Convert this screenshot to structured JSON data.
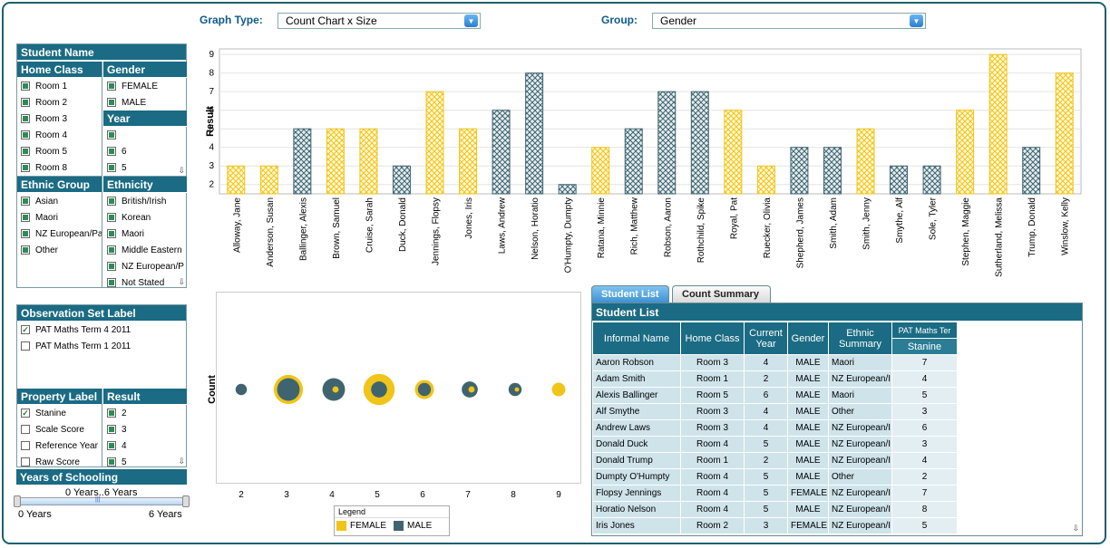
{
  "controls": {
    "graph_type_label": "Graph Type:",
    "graph_type_value": "Count Chart x Size",
    "group_label": "Group:",
    "group_value": "Gender"
  },
  "filters": {
    "student_name_header": "Student Name",
    "home_class": {
      "header": "Home Class",
      "items": [
        "Room 1",
        "Room 2",
        "Room 3",
        "Room 4",
        "Room 5",
        "Room 8"
      ]
    },
    "gender": {
      "header": "Gender",
      "items": [
        "FEMALE",
        "MALE"
      ]
    },
    "year": {
      "header": "Year",
      "items": [
        "",
        "6",
        "5"
      ]
    },
    "ethnic_group": {
      "header": "Ethnic Group",
      "items": [
        "Asian",
        "Maori",
        "NZ European/Pa",
        "Other"
      ]
    },
    "ethnicity": {
      "header": "Ethnicity",
      "items": [
        "British/Irish",
        "Korean",
        "Maori",
        "Middle Eastern",
        "NZ European/P",
        "Not Stated"
      ]
    },
    "observation_set": {
      "header": "Observation Set Label",
      "items": [
        {
          "label": "PAT Maths Term 4 2011",
          "checked": true
        },
        {
          "label": "PAT Maths Term 1 2011",
          "checked": false
        }
      ]
    },
    "property_label": {
      "header": "Property Label",
      "items": [
        {
          "label": "Stanine",
          "checked": true
        },
        {
          "label": "Scale Score",
          "checked": false
        },
        {
          "label": "Reference Year",
          "checked": false
        },
        {
          "label": "Raw Score",
          "checked": false
        }
      ]
    },
    "result": {
      "header": "Result",
      "items": [
        "2",
        "3",
        "4",
        "5"
      ]
    },
    "years_of_schooling": {
      "header": "Years of Schooling",
      "range_text": "0 Years..6 Years",
      "min_label": "0 Years",
      "max_label": "6 Years"
    }
  },
  "colors": {
    "female": "#f0c419",
    "male": "#3f6470",
    "header": "#1a6b83"
  },
  "bar_chart": {
    "chart_data": {
      "type": "bar",
      "ylabel": "Result",
      "ylim": [
        1.5,
        9.3
      ],
      "yticks": [
        "2",
        "3",
        "4",
        "5",
        "6",
        "7",
        "8",
        "9"
      ],
      "categories": [
        "Alloway, Jane",
        "Anderson, Susan",
        "Ballinger, Alexis",
        "Brown, Samuel",
        "Cruise, Sarah",
        "Duck, Donald",
        "Jennings, Flopsy",
        "Jones, Iris",
        "Laws, Andrew",
        "Nelson, Horatio",
        "O'Humpty, Dumpty",
        "Ratana, Minnie",
        "Rich, Matthew",
        "Robson, Aaron",
        "Rothchild, Spike",
        "Royal, Pat",
        "Ruecker, Olivia",
        "Shepherd, James",
        "Smith, Adam",
        "Smith, Jenny",
        "Smythe, Alf",
        "Sole, Tyler",
        "Stephen, Maggie",
        "Sutherland, Melissa",
        "Trump, Donald",
        "Winslow, Kelly"
      ],
      "values": [
        3,
        3,
        5,
        5,
        5,
        3,
        7,
        5,
        6,
        8,
        2,
        4,
        5,
        7,
        7,
        6,
        3,
        4,
        4,
        5,
        3,
        3,
        6,
        9,
        4,
        8
      ],
      "groups": [
        "F",
        "F",
        "M",
        "F",
        "F",
        "M",
        "F",
        "F",
        "M",
        "M",
        "M",
        "F",
        "M",
        "M",
        "M",
        "F",
        "F",
        "M",
        "M",
        "F",
        "M",
        "M",
        "F",
        "F",
        "M",
        "F"
      ]
    }
  },
  "bubble_chart": {
    "chart_data": {
      "type": "scatter",
      "ylabel": "Count",
      "xticks": [
        "2",
        "3",
        "4",
        "5",
        "6",
        "7",
        "8",
        "9"
      ],
      "female_sizes": [
        0,
        14,
        4,
        16,
        6,
        4,
        2,
        3
      ],
      "male_sizes": [
        3,
        12,
        12,
        6,
        4,
        6,
        4,
        0
      ],
      "legend_title": "Legend",
      "legend": [
        "FEMALE",
        "MALE"
      ]
    }
  },
  "tabs": [
    "Student List",
    "Count Summary"
  ],
  "student_list": {
    "title": "Student List",
    "columns": [
      "Informal Name",
      "Home Class",
      "Current Year",
      "Gender",
      "Ethnic Summary"
    ],
    "pat_header": "PAT Maths Ter",
    "stanine_header": "Stanine",
    "rows": [
      [
        "Aaron Robson",
        "Room 3",
        "4",
        "MALE",
        "Maori",
        "7"
      ],
      [
        "Adam Smith",
        "Room 1",
        "2",
        "MALE",
        "NZ European/I",
        "4"
      ],
      [
        "Alexis Ballinger",
        "Room 5",
        "6",
        "MALE",
        "Maori",
        "5"
      ],
      [
        "Alf Smythe",
        "Room 3",
        "4",
        "MALE",
        "Other",
        "3"
      ],
      [
        "Andrew Laws",
        "Room 3",
        "4",
        "MALE",
        "NZ European/I",
        "6"
      ],
      [
        "Donald Duck",
        "Room 4",
        "5",
        "MALE",
        "NZ European/I",
        "3"
      ],
      [
        "Donald Trump",
        "Room 1",
        "2",
        "MALE",
        "NZ European/I",
        "4"
      ],
      [
        "Dumpty O'Humpty",
        "Room 4",
        "5",
        "MALE",
        "Other",
        "2"
      ],
      [
        "Flopsy Jennings",
        "Room 4",
        "5",
        "FEMALE",
        "NZ European/I",
        "7"
      ],
      [
        "Horatio Nelson",
        "Room 4",
        "5",
        "MALE",
        "NZ European/I",
        "8"
      ],
      [
        "Iris Jones",
        "Room 2",
        "3",
        "FEMALE",
        "NZ European/I",
        "5"
      ]
    ]
  }
}
